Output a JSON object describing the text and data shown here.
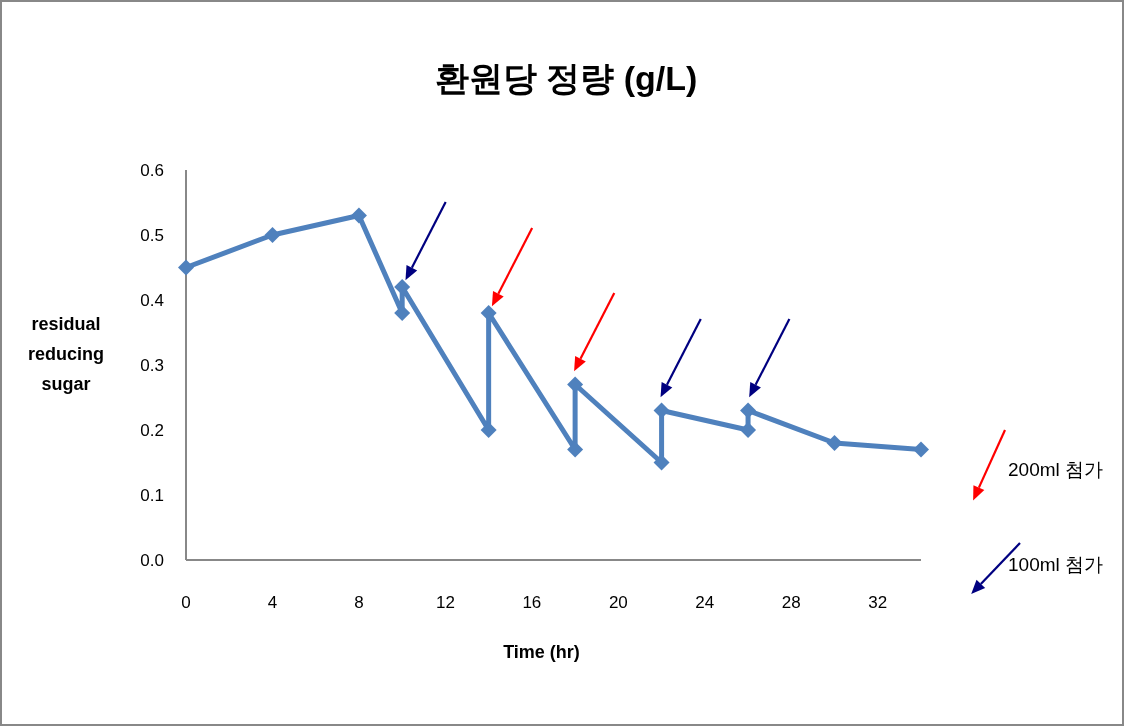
{
  "chart_data": {
    "type": "line",
    "title": "환원당 정량 (g/L)",
    "xlabel": "Time (hr)",
    "ylabel": "residual reducing sugar",
    "xlim": [
      0,
      34
    ],
    "xticks": [
      0,
      4,
      8,
      12,
      16,
      20,
      24,
      28,
      32
    ],
    "ylim": [
      0,
      0.6
    ],
    "yticks": [
      {
        "value": 0,
        "label": "0.0"
      },
      0.1,
      0.2,
      0.3,
      0.4,
      0.5,
      0.6
    ],
    "grid": false,
    "legend": "right",
    "marker": "diamond",
    "line_style": "solid",
    "series": [
      {
        "color": "#4f81bd",
        "x": [
          0,
          4,
          8,
          10,
          10,
          14,
          14,
          18,
          18,
          22,
          22,
          26,
          26,
          30,
          34
        ],
        "values": [
          0.45,
          0.5,
          0.53,
          0.38,
          0.42,
          0.2,
          0.38,
          0.17,
          0.27,
          0.15,
          0.23,
          0.2,
          0.23,
          0.18,
          0.17
        ]
      },
      {
        "type": "scatter",
        "name": "200ml 첨가",
        "color": "#ff0000",
        "x": [
          14.3,
          18.1
        ],
        "values": [
          0.4,
          0.3
        ],
        "marker": "triangle"
      },
      {
        "type": "scatter",
        "name": "100ml 첨가",
        "color": "#000080",
        "x": [
          10.3,
          22.1,
          26.2
        ],
        "values": [
          0.44,
          0.26,
          0.26
        ],
        "marker": "triangle"
      }
    ]
  }
}
